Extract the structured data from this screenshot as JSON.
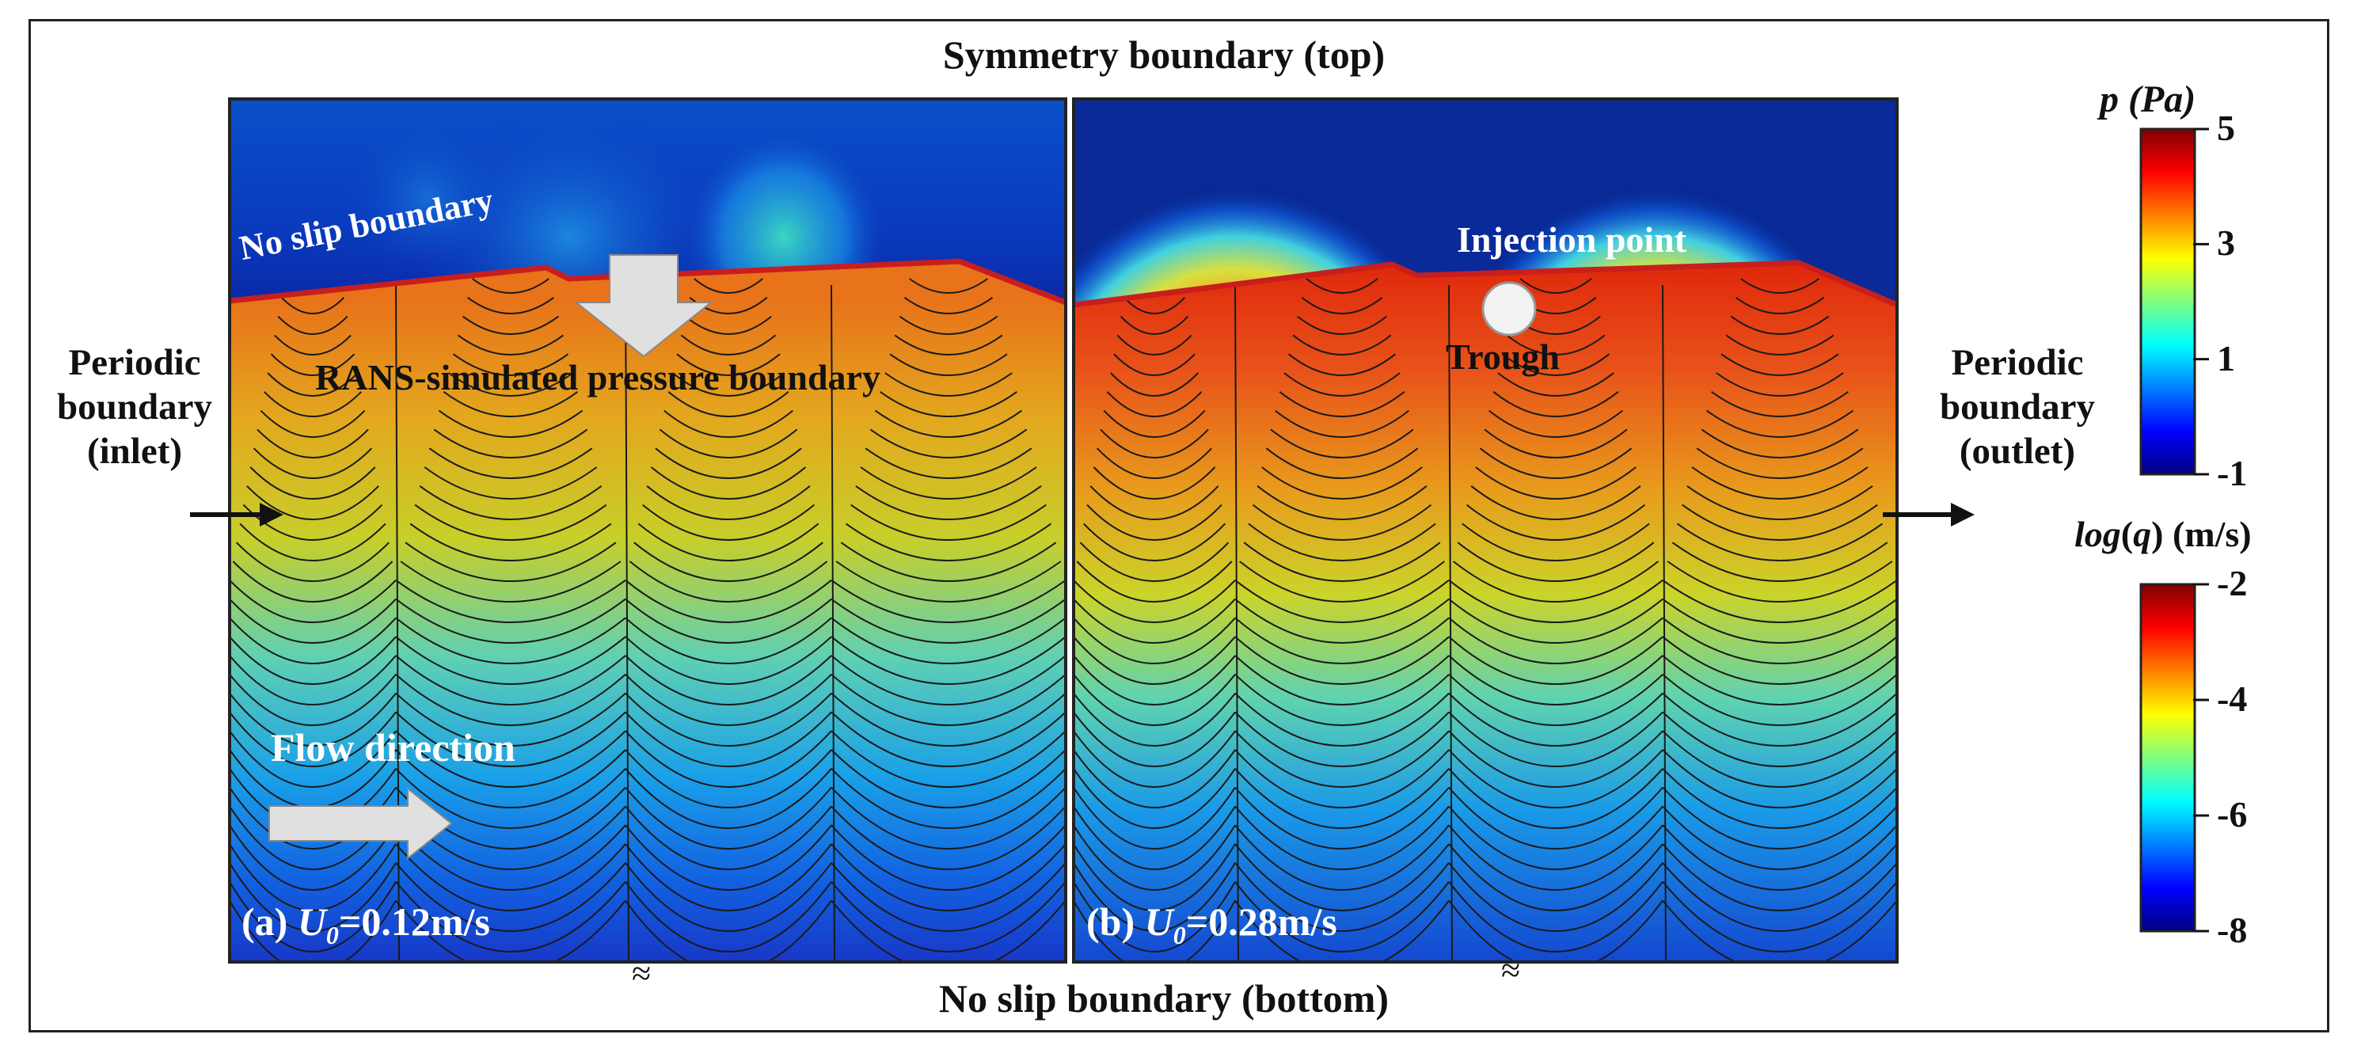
{
  "figure": {
    "top_label": "Symmetry boundary (top)",
    "bottom_label": "No slip boundary (bottom)",
    "left_label": [
      "Periodic",
      "boundary",
      "(inlet)"
    ],
    "right_label": [
      "Periodic",
      "boundary",
      "(outlet)"
    ],
    "break_mark": "≈"
  },
  "panels": {
    "a": {
      "prefix": "(a)",
      "var": "U",
      "sub": "0",
      "value": "=0.12m/s",
      "no_slip_label": "No slip boundary",
      "rans_label": "RANS-simulated pressure boundary",
      "flow_label": "Flow direction"
    },
    "b": {
      "prefix": "(b)",
      "var": "U",
      "sub": "0",
      "value": "=0.28m/s",
      "injection_label": "Injection point",
      "trough_label": "Trough"
    }
  },
  "colorbars": {
    "pressure": {
      "var": "p",
      "unit": "(Pa)",
      "ticks": [
        "5",
        "3",
        "1",
        "-1"
      ],
      "tick_values": [
        5,
        3,
        1,
        -1
      ],
      "range": [
        -1,
        5
      ]
    },
    "flux": {
      "title_var": "log",
      "title_arg": "q",
      "unit": "(m/s)",
      "ticks": [
        "-2",
        "-4",
        "-6",
        "-8"
      ],
      "tick_values": [
        -2,
        -4,
        -6,
        -8
      ],
      "range": [
        -8,
        -2
      ]
    }
  },
  "colors": {
    "boundary_red": "#c81e1e",
    "frame": "#222222",
    "arrow_fill": "#e0e0e0",
    "colormap": [
      "#00007f",
      "#0000ff",
      "#007fff",
      "#00ffff",
      "#7fff7f",
      "#ffff00",
      "#ff7f00",
      "#ff0000",
      "#7f0000"
    ]
  }
}
